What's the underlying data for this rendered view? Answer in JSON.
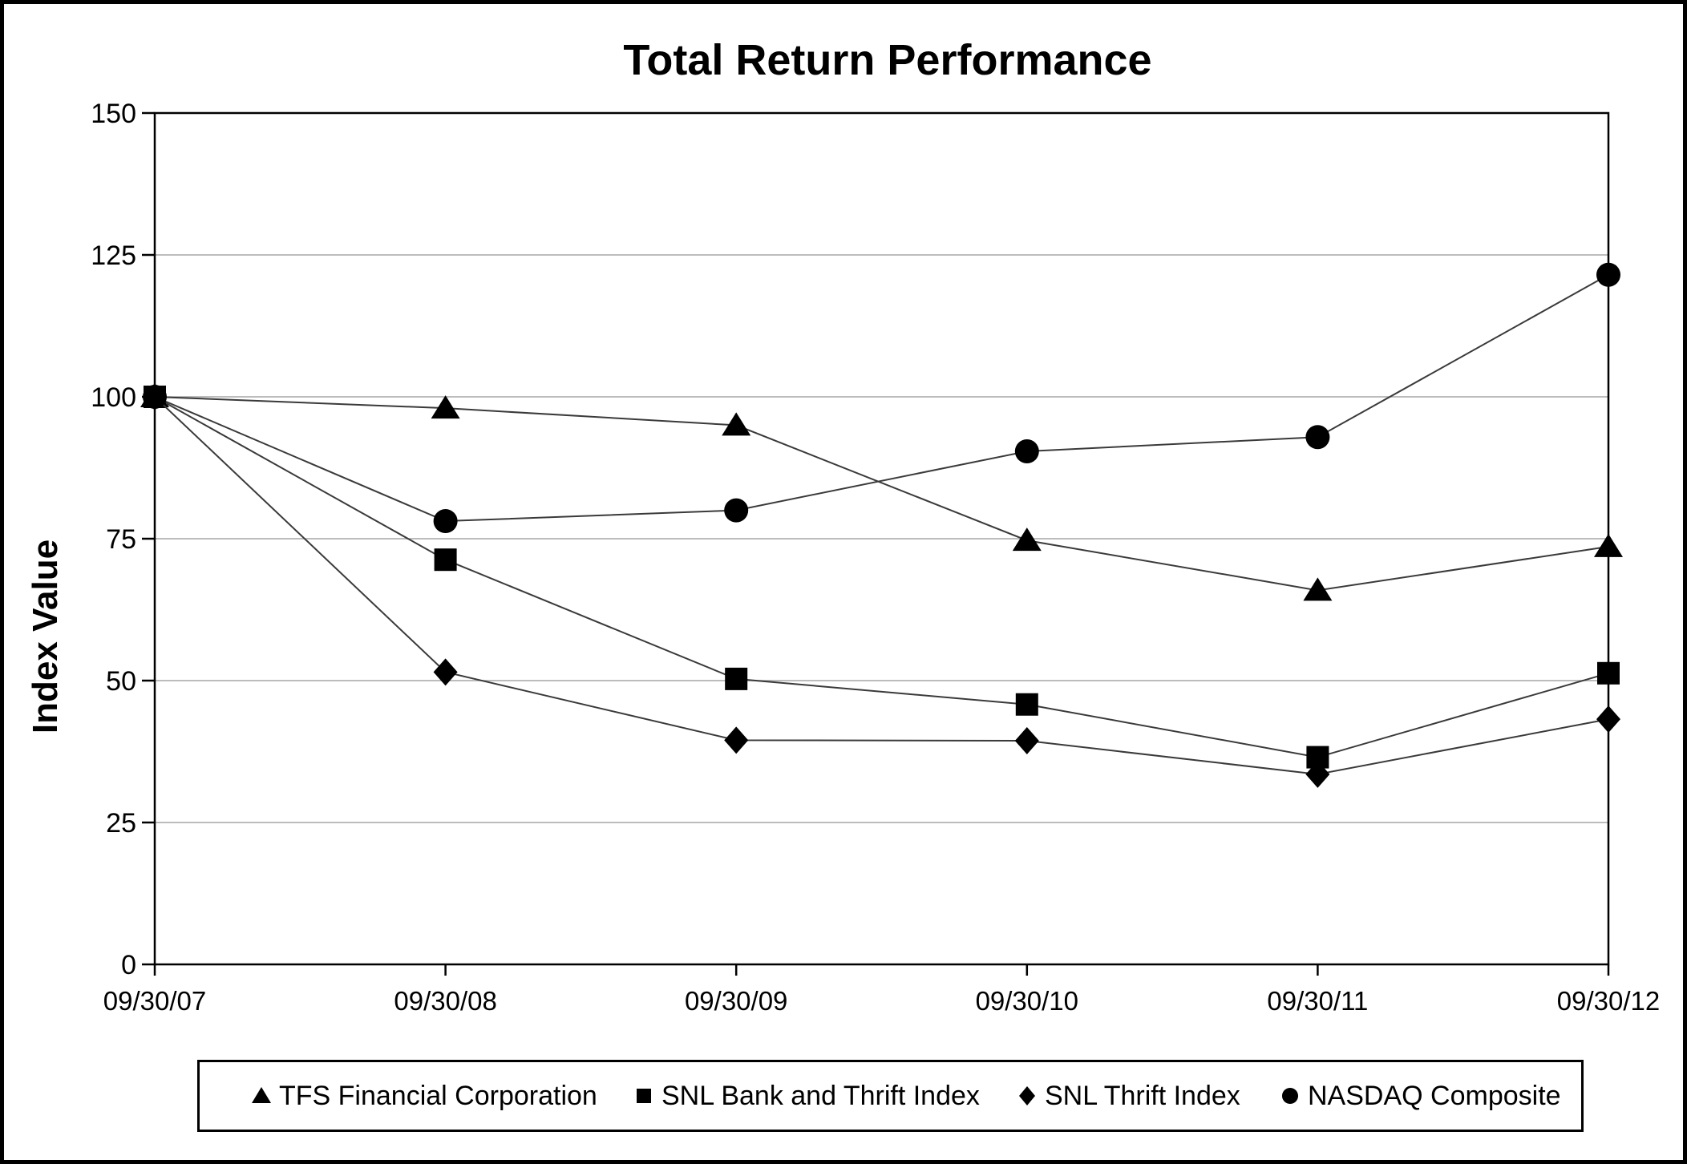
{
  "chart_data": {
    "type": "line",
    "title": "Total Return Performance",
    "ylabel": "Index Value",
    "categories": [
      "09/30/07",
      "09/30/08",
      "09/30/09",
      "09/30/10",
      "09/30/11",
      "09/30/12"
    ],
    "series": [
      {
        "name": "TFS Financial Corporation",
        "marker": "triangle",
        "values": [
          100,
          98.0,
          95.0,
          74.7,
          65.9,
          73.6
        ]
      },
      {
        "name": "SNL Bank and Thrift Index",
        "marker": "square",
        "values": [
          100,
          71.3,
          50.3,
          45.8,
          36.5,
          51.3
        ]
      },
      {
        "name": "SNL Thrift Index",
        "marker": "diamond",
        "values": [
          100,
          51.5,
          39.5,
          39.4,
          33.5,
          43.2
        ]
      },
      {
        "name": "NASDAQ Composite",
        "marker": "circle",
        "values": [
          100,
          78.1,
          80.0,
          90.4,
          92.9,
          121.5
        ]
      }
    ],
    "ylim": [
      0,
      150
    ],
    "yticks": [
      0,
      25,
      50,
      75,
      100,
      125,
      150
    ],
    "grid": true,
    "legend_position": "bottom",
    "colors": {
      "series_line": "#3a3a3a",
      "marker": "#000000",
      "gridline": "#a6a6a6",
      "axis": "#000000",
      "background": "#ffffff",
      "frame_border": "#000000"
    }
  }
}
